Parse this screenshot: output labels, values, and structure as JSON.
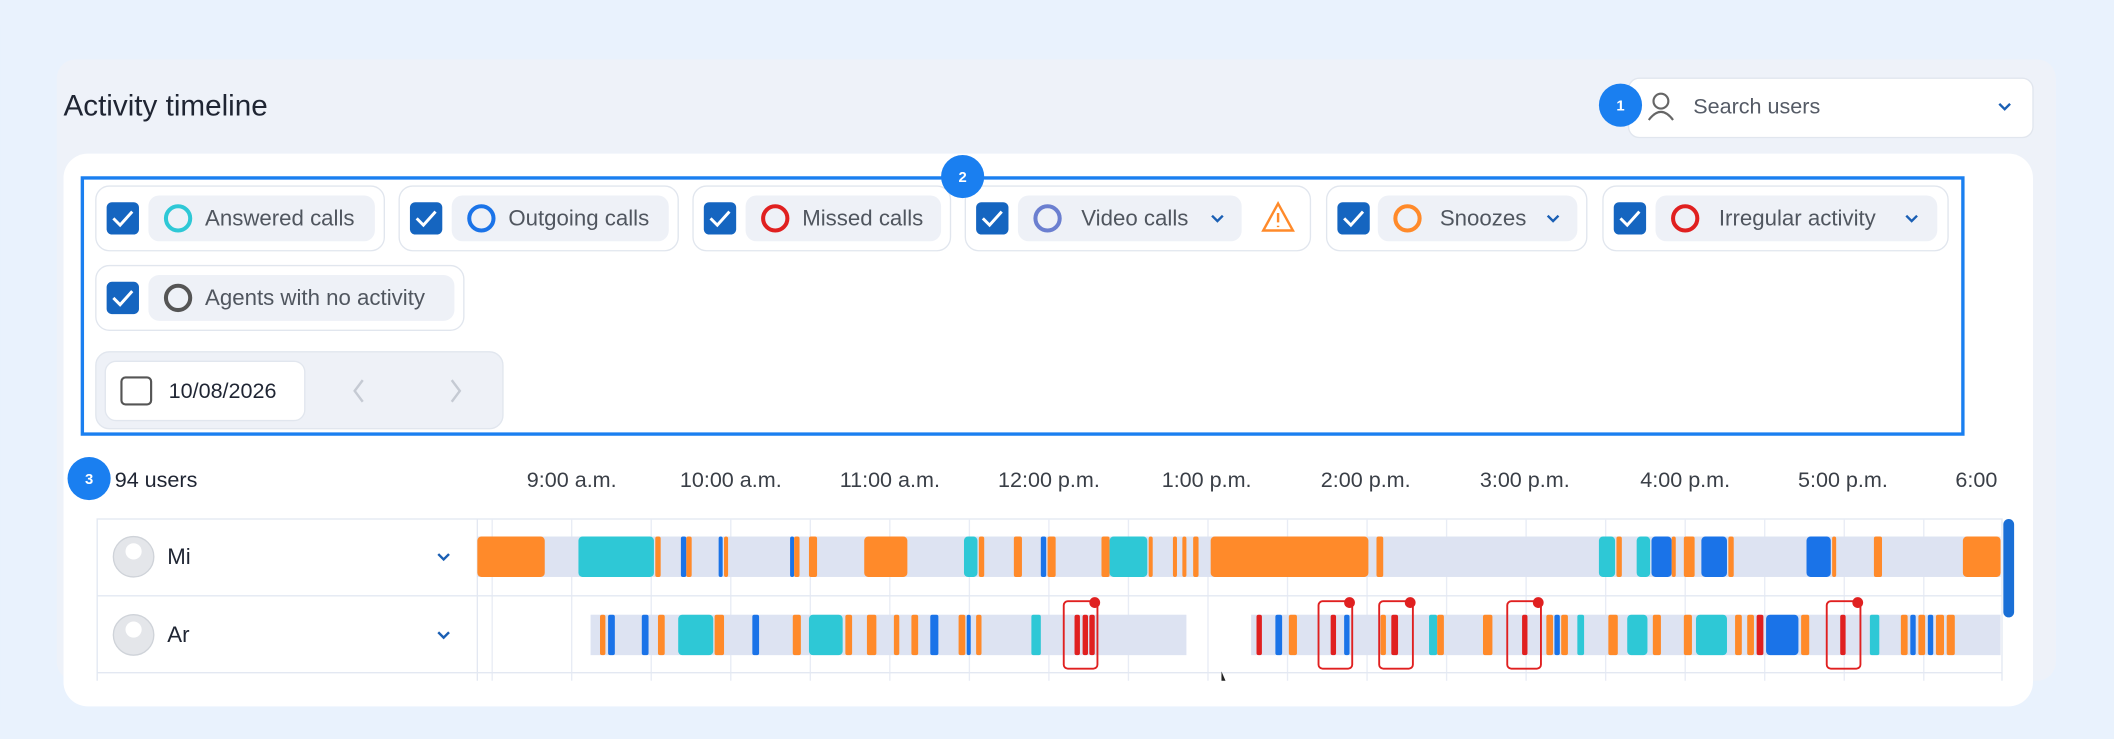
{
  "header": {
    "title": "Activity timeline",
    "search_placeholder": "Search users"
  },
  "badges": [
    "1",
    "2",
    "3"
  ],
  "filters": [
    "Answered calls",
    "Outgoing calls",
    "Missed calls",
    "Video calls",
    "Snoozes",
    "Irregular activity",
    "Agents with no activity"
  ],
  "date": "10/08/2026",
  "users_count": "94 users",
  "time_labels": [
    "9:00 a.m.",
    "10:00 a.m.",
    "11:00 a.m.",
    "12:00 p.m.",
    "1:00 p.m.",
    "2:00 p.m.",
    "3:00 p.m.",
    "4:00 p.m.",
    "5:00 p.m.",
    "6:00"
  ],
  "rows": [
    {
      "name": "Mi"
    },
    {
      "name": "Ar"
    }
  ]
}
